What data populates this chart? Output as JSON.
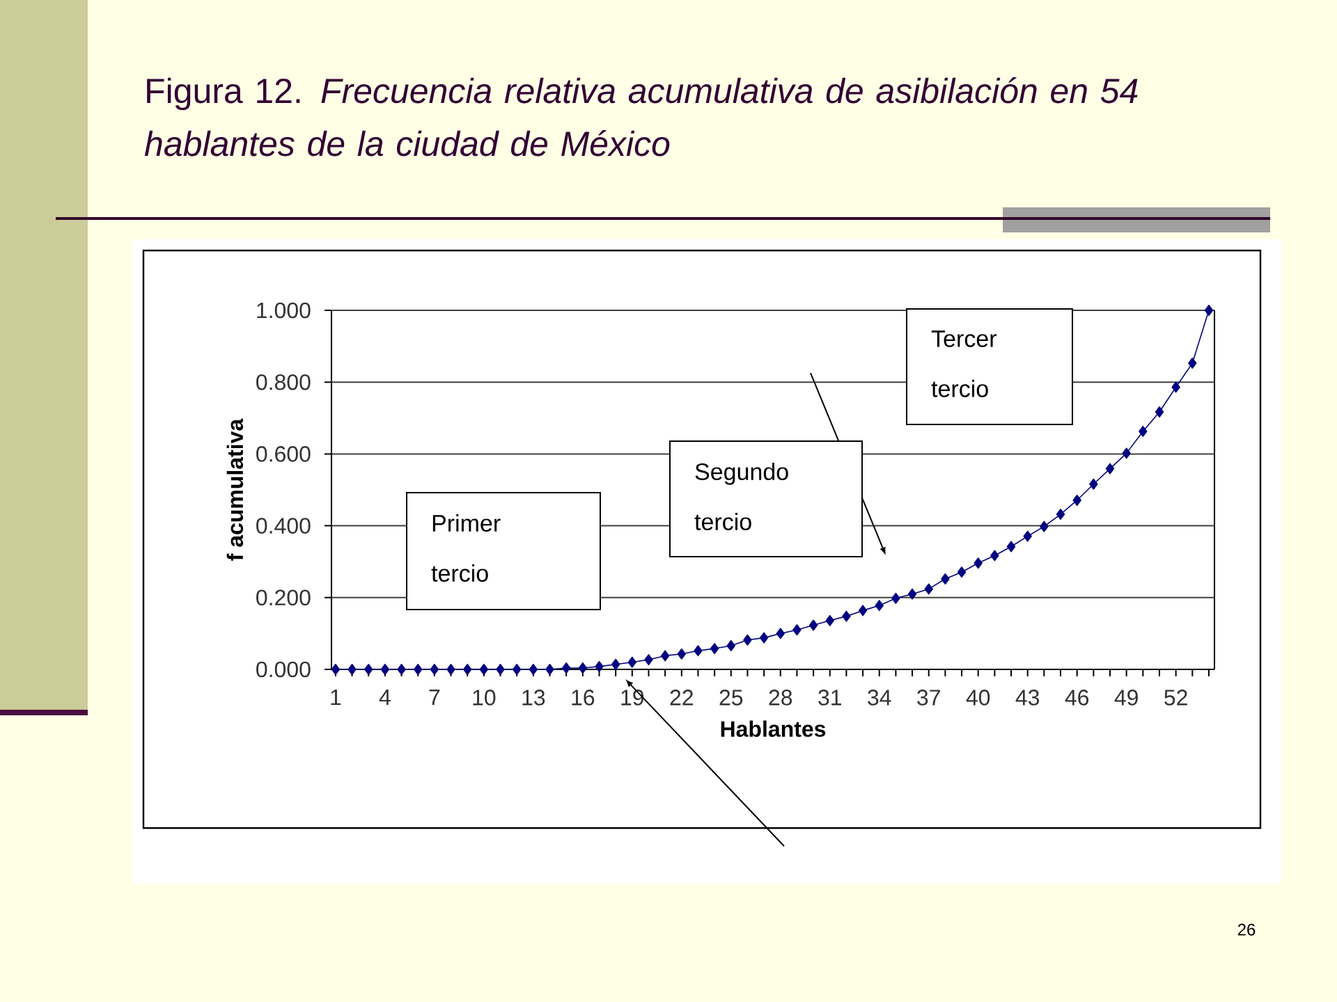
{
  "chart_data": {
    "type": "line",
    "title": "Figura 12. *Frecuencia relativa acumulativa de asibilación en 54 hablantes de la ciudad de México*",
    "xlabel": "Hablantes",
    "ylabel": "f acumulativa",
    "categories": [
      "1",
      null,
      null,
      "4",
      null,
      null,
      "7",
      null,
      null,
      "10",
      null,
      null,
      "13",
      null,
      null,
      "16",
      null,
      null,
      "19",
      null,
      null,
      "22",
      null,
      null,
      "25",
      null,
      null,
      "28",
      null,
      null,
      "31",
      null,
      null,
      "34",
      null,
      null,
      "37",
      null,
      null,
      "40",
      null,
      null,
      "43",
      null,
      null,
      "46",
      null,
      null,
      "49",
      null,
      null,
      "52",
      null,
      null
    ],
    "values": [
      0.0,
      0.0,
      0.0,
      0.0,
      0.0,
      0.0,
      0.0,
      0.0,
      0.0,
      0.0,
      0.0,
      0.0,
      0.0,
      0.0,
      0.004,
      0.004,
      0.008,
      0.014,
      0.02,
      0.027,
      0.038,
      0.043,
      0.052,
      0.058,
      0.066,
      0.082,
      0.088,
      0.1,
      0.11,
      0.123,
      0.136,
      0.148,
      0.164,
      0.178,
      0.198,
      0.21,
      0.224,
      0.252,
      0.271,
      0.296,
      0.317,
      0.342,
      0.371,
      0.398,
      0.432,
      0.471,
      0.516,
      0.559,
      0.602,
      0.663,
      0.717,
      0.786,
      0.853,
      1.0
    ],
    "color": "#000080",
    "marker": "diamond",
    "grid": "y",
    "ylim": [
      0,
      1
    ],
    "yticks": [
      {
        "value": 0,
        "label": "0.000"
      },
      {
        "value": 0.2,
        "label": "0.200"
      },
      {
        "value": 0.4,
        "label": "0.400"
      },
      {
        "value": 0.6,
        "label": "0.600"
      },
      {
        "value": 0.8,
        "label": "0.800"
      },
      {
        "value": 1,
        "label": "1.000"
      }
    ],
    "annotations": [
      "Primer tercio",
      "Segundo tercio",
      "Tercer tercio",
      "26"
    ]
  }
}
